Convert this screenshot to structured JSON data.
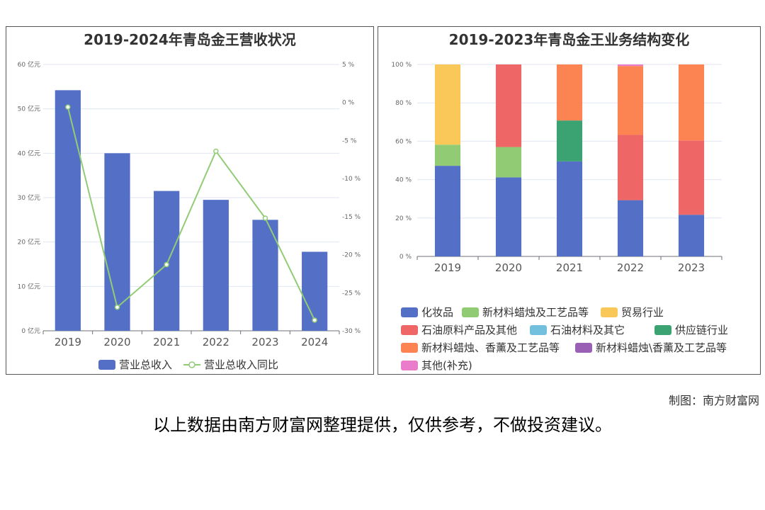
{
  "chart_data": [
    {
      "type": "bar",
      "title": "2019-2024年青岛金王营收状况",
      "categories": [
        "2019",
        "2020",
        "2021",
        "2022",
        "2023",
        "2024"
      ],
      "series": [
        {
          "name": "营业总收入",
          "type": "bar",
          "axis": "left",
          "color": "#5470c6",
          "values": [
            54.2,
            40.0,
            31.5,
            29.5,
            25.0,
            17.8
          ]
        },
        {
          "name": "营业总收入同比",
          "type": "line",
          "axis": "right",
          "color": "#91cc75",
          "values": [
            -0.6,
            -26.9,
            -21.3,
            -6.4,
            -15.2,
            -28.6
          ]
        }
      ],
      "y_left": {
        "ylim": [
          0,
          60
        ],
        "ticks": [
          "0 亿元",
          "10 亿元",
          "20 亿元",
          "30 亿元",
          "40 亿元",
          "50 亿元",
          "60 亿元"
        ]
      },
      "y_right": {
        "ylim": [
          -30,
          5
        ],
        "ticks": [
          "-30 %",
          "-25 %",
          "-20 %",
          "-15 %",
          "-10 %",
          "-5 %",
          "0 %",
          "5 %"
        ]
      },
      "grid": true,
      "legend_position": "bottom"
    },
    {
      "type": "bar",
      "stacked": true,
      "title": "2019-2023年青岛金王业务结构变化",
      "categories": [
        "2019",
        "2020",
        "2021",
        "2022",
        "2023"
      ],
      "series": [
        {
          "name": "化妆品",
          "color": "#5470c6",
          "values": [
            47.2,
            41.2,
            49.5,
            29.3,
            21.7
          ]
        },
        {
          "name": "新材料蜡烛及工艺品等",
          "color": "#91cc75",
          "values": [
            11.0,
            15.8,
            0,
            0,
            0
          ]
        },
        {
          "name": "贸易行业",
          "color": "#fac858",
          "values": [
            41.8,
            0,
            0,
            0,
            0
          ]
        },
        {
          "name": "石油原料产品及其他",
          "color": "#ee6666",
          "values": [
            0,
            43.0,
            0,
            34.0,
            38.7
          ]
        },
        {
          "name": "石油材料及其它",
          "color": "#73c0de",
          "values": [
            0,
            0,
            0,
            0,
            0
          ]
        },
        {
          "name": "供应链行业",
          "color": "#3ba272",
          "values": [
            0,
            0,
            21.3,
            0,
            0
          ]
        },
        {
          "name": "新材料蜡烛、香薰及工艺品等",
          "color": "#fc8452",
          "values": [
            0,
            0,
            29.2,
            35.9,
            39.6
          ]
        },
        {
          "name": "新材料蜡烛\\香薰及工艺品等",
          "color": "#9a60b4",
          "values": [
            0,
            0,
            0,
            0,
            0
          ]
        },
        {
          "name": "其他(补充)",
          "color": "#ea7ccc",
          "values": [
            0,
            0,
            0,
            0.8,
            0
          ]
        }
      ],
      "y": {
        "ylim": [
          0,
          100
        ],
        "ticks": [
          "0 %",
          "20 %",
          "40 %",
          "60 %",
          "80 %",
          "100 %"
        ]
      },
      "grid": true,
      "legend_position": "bottom"
    }
  ],
  "credit": "制图：南方财富网",
  "disclaimer": "以上数据由南方财富网整理提供，仅供参考，不做投资建议。"
}
